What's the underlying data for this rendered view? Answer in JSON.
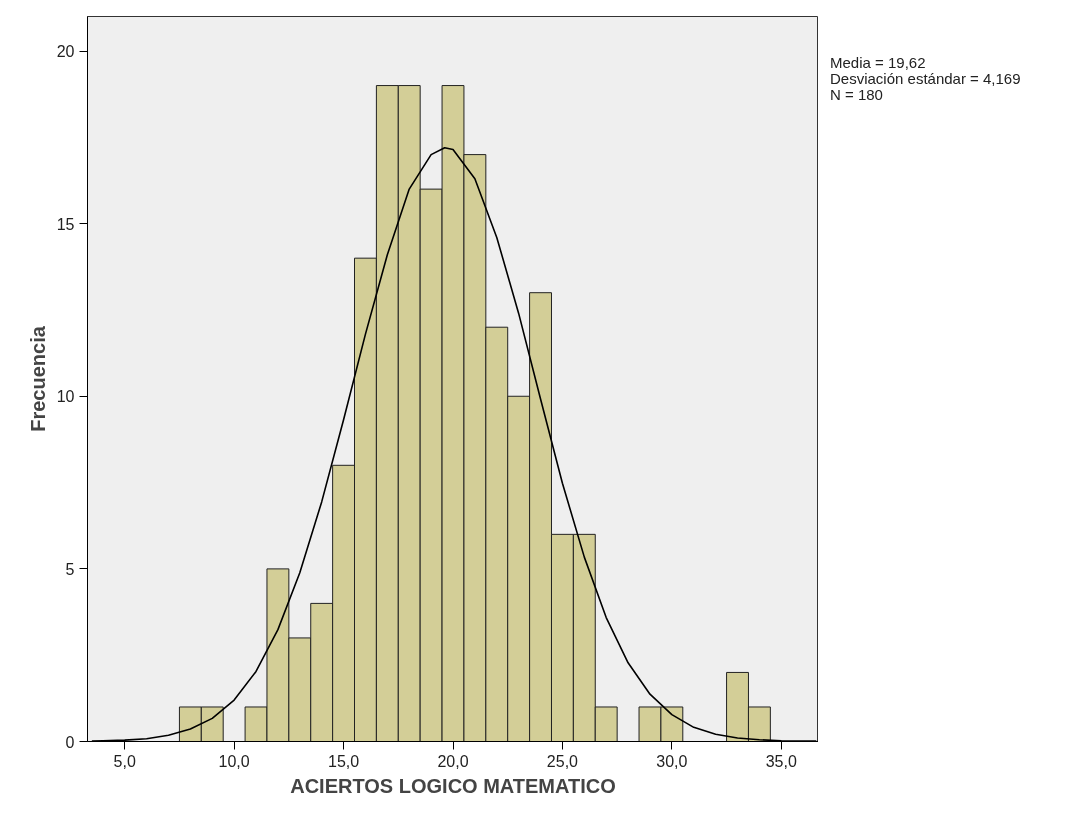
{
  "chart_data": {
    "type": "histogram",
    "xlabel": "ACIERTOS LOGICO MATEMATICO",
    "ylabel": "Frecuencia",
    "bins": [
      7.5,
      8.5,
      9.5,
      10.5,
      11.5,
      12.5,
      13.5,
      14.5,
      15.5,
      16.5,
      17.5,
      18.5,
      19.5,
      20.5,
      21.5,
      22.5,
      23.5,
      24.5,
      25.5,
      26.5,
      27.5,
      28.5,
      29.5,
      30.5,
      31.5,
      32.5,
      33.5,
      34.5
    ],
    "values": [
      1,
      1,
      0,
      1,
      5,
      3,
      4,
      8,
      14,
      19,
      19,
      16,
      19,
      17,
      12,
      10,
      13,
      6,
      6,
      1,
      0,
      1,
      1,
      0,
      0,
      2,
      1
    ],
    "color": "#d3ce97",
    "series": [
      {
        "type": "line",
        "color": "#000000",
        "x": [
          3.5,
          4,
          5,
          6,
          7,
          8,
          9,
          10,
          11,
          12,
          13,
          14,
          15,
          16,
          17,
          18,
          19,
          19.62,
          20,
          21,
          22,
          23,
          24,
          25,
          26,
          27,
          28,
          29,
          30,
          31,
          32,
          33,
          34,
          35,
          36,
          36.6
        ],
        "values": [
          0.01,
          0.02,
          0.04,
          0.08,
          0.18,
          0.36,
          0.67,
          1.2,
          2.03,
          3.24,
          4.89,
          6.94,
          9.32,
          11.8,
          14.1,
          16.0,
          17.0,
          17.2,
          17.15,
          16.3,
          14.6,
          12.4,
          9.92,
          7.48,
          5.34,
          3.59,
          2.28,
          1.37,
          0.78,
          0.41,
          0.21,
          0.1,
          0.05,
          0.02,
          0.01,
          0.01
        ]
      }
    ],
    "xlim": [
      3.3,
      36.7
    ],
    "ylim": [
      0,
      21
    ],
    "xticks": [
      {
        "value": 5,
        "label": "5,0"
      },
      {
        "value": 10,
        "label": "10,0"
      },
      {
        "value": 15,
        "label": "15,0"
      },
      {
        "value": 20,
        "label": "20,0"
      },
      {
        "value": 25,
        "label": "25,0"
      },
      {
        "value": 30,
        "label": "30,0"
      },
      {
        "value": 35,
        "label": "35,0"
      }
    ],
    "yticks": [
      0,
      5,
      10,
      15,
      20
    ],
    "grid": false,
    "annotations": [
      "Media = 19,62",
      "Desviación estándar = 4,169",
      "N = 180"
    ]
  }
}
